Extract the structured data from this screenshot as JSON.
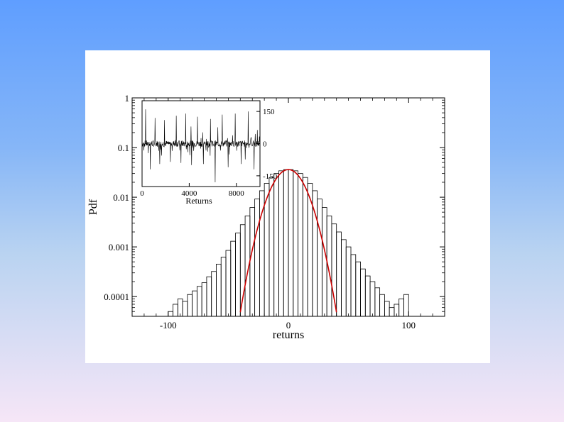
{
  "chart_data": [
    {
      "type": "bar",
      "title": "",
      "xlabel": "returns",
      "ylabel": "Pdf",
      "xlim": [
        -130,
        130
      ],
      "ylim": [
        4e-05,
        1
      ],
      "y_scale": "log",
      "x_ticks": [
        -100,
        0,
        100
      ],
      "x_tick_labels": [
        "-100",
        "0",
        "100"
      ],
      "y_ticks": [
        1,
        0.1,
        0.01,
        0.001,
        0.0001
      ],
      "y_tick_labels": [
        "1",
        "0.1",
        "0.01",
        "0.001",
        "0.0001"
      ],
      "grid": false,
      "bin_width": 4,
      "series": [
        {
          "type": "histogram",
          "color": "#000000",
          "bins": [
            {
              "x": -98,
              "y": 5e-05
            },
            {
              "x": -94,
              "y": 7e-05
            },
            {
              "x": -90,
              "y": 9e-05
            },
            {
              "x": -86,
              "y": 8e-05
            },
            {
              "x": -82,
              "y": 0.00011
            },
            {
              "x": -78,
              "y": 0.00013
            },
            {
              "x": -74,
              "y": 0.00016
            },
            {
              "x": -70,
              "y": 0.00019
            },
            {
              "x": -66,
              "y": 0.00025
            },
            {
              "x": -62,
              "y": 0.00032
            },
            {
              "x": -58,
              "y": 0.00045
            },
            {
              "x": -54,
              "y": 0.00062
            },
            {
              "x": -50,
              "y": 0.00085
            },
            {
              "x": -46,
              "y": 0.0013
            },
            {
              "x": -42,
              "y": 0.0019
            },
            {
              "x": -38,
              "y": 0.0028
            },
            {
              "x": -34,
              "y": 0.0042
            },
            {
              "x": -30,
              "y": 0.0062
            },
            {
              "x": -26,
              "y": 0.0092
            },
            {
              "x": -22,
              "y": 0.0135
            },
            {
              "x": -18,
              "y": 0.019
            },
            {
              "x": -14,
              "y": 0.025
            },
            {
              "x": -10,
              "y": 0.03
            },
            {
              "x": -6,
              "y": 0.034
            },
            {
              "x": -2,
              "y": 0.036
            },
            {
              "x": 2,
              "y": 0.036
            },
            {
              "x": 6,
              "y": 0.034
            },
            {
              "x": 10,
              "y": 0.03
            },
            {
              "x": 14,
              "y": 0.025
            },
            {
              "x": 18,
              "y": 0.019
            },
            {
              "x": 22,
              "y": 0.0135
            },
            {
              "x": 26,
              "y": 0.0092
            },
            {
              "x": 30,
              "y": 0.0062
            },
            {
              "x": 34,
              "y": 0.0042
            },
            {
              "x": 38,
              "y": 0.0029
            },
            {
              "x": 42,
              "y": 0.002
            },
            {
              "x": 46,
              "y": 0.0014
            },
            {
              "x": 50,
              "y": 0.001
            },
            {
              "x": 54,
              "y": 0.0007
            },
            {
              "x": 58,
              "y": 0.0005
            },
            {
              "x": 62,
              "y": 0.00036
            },
            {
              "x": 66,
              "y": 0.00026
            },
            {
              "x": 70,
              "y": 0.0002
            },
            {
              "x": 74,
              "y": 0.00015
            },
            {
              "x": 78,
              "y": 0.00011
            },
            {
              "x": 82,
              "y": 8e-05
            },
            {
              "x": 86,
              "y": 6e-05
            },
            {
              "x": 90,
              "y": 7e-05
            },
            {
              "x": 94,
              "y": 9e-05
            },
            {
              "x": 98,
              "y": 0.00011
            }
          ]
        },
        {
          "type": "line",
          "color": "#cc0000",
          "model": "gaussian",
          "mean": 0,
          "std": 11,
          "peak": 0.036,
          "x_range": [
            -40,
            40
          ]
        }
      ]
    },
    {
      "type": "line",
      "role": "inset",
      "title": "",
      "xlabel": "Returns",
      "ylabel": "",
      "xlim": [
        0,
        10000
      ],
      "ylim": [
        -200,
        200
      ],
      "x_ticks": [
        0,
        4000,
        8000
      ],
      "x_tick_labels": [
        "0",
        "4000",
        "8000"
      ],
      "y_ticks": [
        150,
        0,
        -150
      ],
      "y_tick_labels": [
        "150",
        "0",
        "-150"
      ],
      "y_axis_side": "right",
      "grid": false,
      "series": [
        {
          "color": "#000000",
          "n_points": 10000,
          "baseline_amplitude": 15,
          "spikes": [
            {
              "x": 300,
              "y": 160
            },
            {
              "x": 700,
              "y": -120
            },
            {
              "x": 1100,
              "y": 120
            },
            {
              "x": 1500,
              "y": -95
            },
            {
              "x": 1900,
              "y": 110
            },
            {
              "x": 2400,
              "y": -85
            },
            {
              "x": 2900,
              "y": 130
            },
            {
              "x": 3300,
              "y": -90
            },
            {
              "x": 3700,
              "y": 140
            },
            {
              "x": 4200,
              "y": -100
            },
            {
              "x": 4700,
              "y": 125
            },
            {
              "x": 5200,
              "y": -95
            },
            {
              "x": 5800,
              "y": 115
            },
            {
              "x": 6200,
              "y": -180
            },
            {
              "x": 6800,
              "y": 135
            },
            {
              "x": 7300,
              "y": -110
            },
            {
              "x": 7900,
              "y": 140
            },
            {
              "x": 8400,
              "y": -95
            },
            {
              "x": 9000,
              "y": 150
            },
            {
              "x": 9500,
              "y": -120
            }
          ]
        }
      ]
    }
  ]
}
